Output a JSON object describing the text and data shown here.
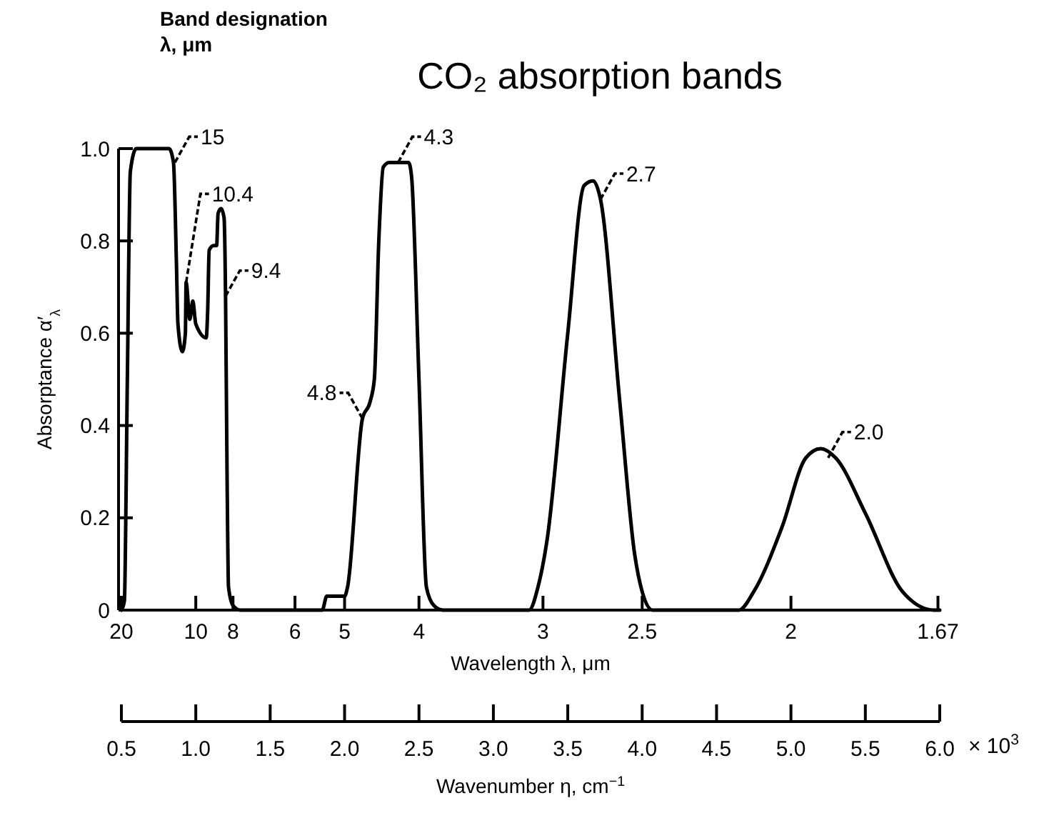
{
  "chart_data": {
    "type": "line",
    "title": "CO₂ absorption bands",
    "xlabel": "Wavenumber η, cm$^{−1}$",
    "ylabel": "Absorptance α′$_{λ}$",
    "x2label": "Wavelength λ, μm",
    "xlim": [
      0.5,
      6.0
    ],
    "ylim": [
      0,
      1.0
    ],
    "xticks": [
      0.5,
      {
        "value": 1.0,
        "label": "1.0"
      },
      1.5,
      {
        "value": 2.0,
        "label": "2.0"
      },
      2.5,
      {
        "value": 3.0,
        "label": "3.0"
      },
      3.5,
      {
        "value": 4.0,
        "label": "4.0"
      },
      4.5,
      {
        "value": 5.0,
        "label": "5.0"
      },
      5.5,
      {
        "value": 6.0,
        "label": "6.0"
      }
    ],
    "yticks": [
      0,
      0.2,
      0.4,
      0.6,
      0.8,
      {
        "value": 1.0,
        "label": "1.0"
      }
    ],
    "series": [
      {
        "color": "#000000",
        "x": [
          0.5,
          0.52,
          0.54,
          0.56,
          0.6,
          0.82,
          0.85,
          0.87,
          0.88,
          0.91,
          0.93,
          0.935,
          0.96,
          0.98,
          1.0,
          1.07,
          1.08,
          1.09,
          1.12,
          1.14,
          1.15,
          1.17,
          1.19,
          1.2,
          1.21,
          1.22,
          1.25,
          1.3,
          1.85,
          1.88,
          2.0,
          2.02,
          2.12,
          2.17,
          2.2,
          2.23,
          2.26,
          2.3,
          2.43,
          2.45,
          2.5,
          2.55,
          2.6,
          2.66,
          3.24,
          3.3,
          3.36,
          3.5,
          3.61,
          3.67,
          3.72,
          3.85,
          3.95,
          4.0,
          4.07,
          4.65,
          4.75,
          4.94,
          5.1,
          5.2,
          5.3,
          5.5,
          5.75,
          5.96,
          6.0
        ],
        "values": [
          0,
          0.02,
          0.5,
          0.95,
          1.0,
          1.0,
          0.97,
          0.75,
          0.62,
          0.56,
          0.6,
          0.71,
          0.63,
          0.67,
          0.62,
          0.59,
          0.65,
          0.78,
          0.79,
          0.79,
          0.86,
          0.87,
          0.85,
          0.68,
          0.3,
          0.05,
          0.01,
          0,
          0,
          0.03,
          0.03,
          0.05,
          0.415,
          0.45,
          0.5,
          0.8,
          0.96,
          0.97,
          0.97,
          0.94,
          0.5,
          0.05,
          0.01,
          0,
          0,
          0.05,
          0.15,
          0.6,
          0.92,
          0.93,
          0.89,
          0.45,
          0.12,
          0.04,
          0,
          0,
          0.04,
          0.18,
          0.33,
          0.35,
          0.33,
          0.21,
          0.04,
          0,
          0
        ]
      }
    ],
    "annotations": [
      "Band designation\nλ, μm",
      "× 10$^{3}$",
      "20",
      "10",
      "8",
      "6",
      "5",
      "4",
      "3",
      "2.5",
      "2",
      "1.67",
      {
        "text": "15",
        "x": 0.86,
        "y": 0.97
      },
      {
        "text": "10.4",
        "x": 0.935,
        "y": 0.71
      },
      {
        "text": "9.4",
        "x": 1.2,
        "y": 0.68
      },
      {
        "text": "4.8",
        "x": 2.12,
        "y": 0.415
      },
      {
        "text": "4.3",
        "x": 2.36,
        "y": 0.97
      },
      {
        "text": "2.7",
        "x": 3.72,
        "y": 0.89
      },
      {
        "text": "2.0",
        "x": 5.25,
        "y": 0.33
      }
    ]
  }
}
